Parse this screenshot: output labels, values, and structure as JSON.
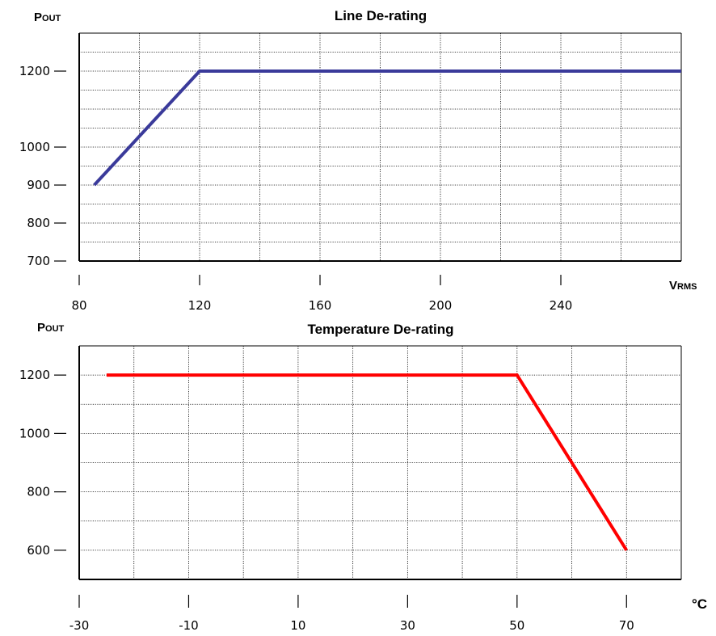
{
  "chart_data": [
    {
      "id": "line",
      "type": "line",
      "title": "Line De-rating",
      "ylabel": {
        "big": "P",
        "small": "OUT"
      },
      "xlabel": {
        "big": "V",
        "small": "RMS"
      },
      "x": [
        85,
        120,
        280
      ],
      "y": [
        900,
        1200,
        1200
      ],
      "xlim": [
        80,
        280
      ],
      "ylim": [
        700,
        1300
      ],
      "xticks": [
        80,
        120,
        160,
        200,
        240
      ],
      "xtick_labels": [
        "80",
        "120",
        "160",
        "200",
        "240"
      ],
      "xgrid": [
        100,
        120,
        140,
        160,
        180,
        200,
        220,
        240,
        260
      ],
      "yticks": [
        700,
        800,
        900,
        1000,
        1200
      ],
      "ytick_labels": [
        "700",
        "800",
        "900",
        "1000",
        "1200"
      ],
      "ygrid": [
        750,
        800,
        850,
        900,
        950,
        1000,
        1050,
        1100,
        1150,
        1200,
        1250
      ],
      "grid": true,
      "color": "#3a3a9a"
    },
    {
      "id": "temp",
      "type": "line",
      "title": "Temperature De-rating",
      "ylabel": {
        "big": "P",
        "small": "OUT"
      },
      "xlabel": {
        "big": "°C",
        "small": ""
      },
      "x": [
        -25,
        50,
        70
      ],
      "y": [
        1200,
        1200,
        600
      ],
      "xlim": [
        -30,
        80
      ],
      "ylim": [
        500,
        1300
      ],
      "xticks": [
        -30,
        -10,
        10,
        30,
        50,
        70
      ],
      "xtick_labels": [
        "-30",
        "-10",
        "10",
        "30",
        "50",
        "70"
      ],
      "xgrid": [
        -20,
        -10,
        0,
        10,
        20,
        30,
        40,
        50,
        60,
        70
      ],
      "yticks": [
        600,
        800,
        1000,
        1200
      ],
      "ytick_labels": [
        "600",
        "800",
        "1000",
        "1200"
      ],
      "ygrid": [
        600,
        700,
        800,
        900,
        1000,
        1100,
        1200
      ],
      "grid": true,
      "color": "#ff0000"
    }
  ]
}
